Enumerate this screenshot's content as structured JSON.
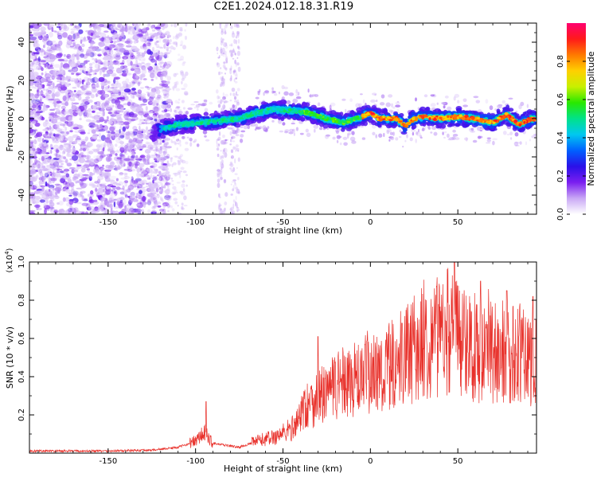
{
  "title": "C2E1.2024.012.18.31.R19",
  "chart_data": [
    {
      "type": "heatmap",
      "name": "spectrogram",
      "xlabel": "Height of straight line (km)",
      "ylabel": "Frequency (Hz)",
      "xlim": [
        -195,
        95
      ],
      "ylim": [
        -50,
        50
      ],
      "xticks": [
        -150,
        -100,
        -50,
        0,
        50
      ],
      "yticks": [
        -40,
        -20,
        0,
        20,
        40
      ],
      "colorbar": {
        "label": "Normalized spectral amplitude",
        "range": [
          0,
          1
        ],
        "ticks": [
          0.0,
          0.2,
          0.4,
          0.6,
          0.8
        ],
        "colors": [
          "#ffffff",
          "#c9a8f5",
          "#7a1ef0",
          "#2a10e8",
          "#0060ff",
          "#00c8f0",
          "#00e28a",
          "#28e800",
          "#c8f000",
          "#ffd000",
          "#ff7a00",
          "#ff1a1a",
          "#ff0070"
        ]
      },
      "ridge": [
        {
          "x": -125,
          "y": -7
        },
        {
          "x": -110,
          "y": -3
        },
        {
          "x": -95,
          "y": -2
        },
        {
          "x": -85,
          "y": -1
        },
        {
          "x": -75,
          "y": 0
        },
        {
          "x": -65,
          "y": 3
        },
        {
          "x": -55,
          "y": 5
        },
        {
          "x": -45,
          "y": 4
        },
        {
          "x": -35,
          "y": 3
        },
        {
          "x": -25,
          "y": 0
        },
        {
          "x": -15,
          "y": -2
        },
        {
          "x": -5,
          "y": 1
        },
        {
          "x": 0,
          "y": 3
        },
        {
          "x": 5,
          "y": 0
        },
        {
          "x": 15,
          "y": 0
        },
        {
          "x": 20,
          "y": -4
        },
        {
          "x": 25,
          "y": 0
        },
        {
          "x": 30,
          "y": 1
        },
        {
          "x": 40,
          "y": 0
        },
        {
          "x": 50,
          "y": 1
        },
        {
          "x": 60,
          "y": 0
        },
        {
          "x": 70,
          "y": -2
        },
        {
          "x": 78,
          "y": 2
        },
        {
          "x": 85,
          "y": -3
        },
        {
          "x": 92,
          "y": 0
        }
      ]
    },
    {
      "type": "line",
      "name": "snr",
      "xlabel": "Height of straight line (km)",
      "ylabel": "SNR (10 * v/v)",
      "multiplier": "(x10^4)",
      "xlim": [
        -195,
        95
      ],
      "ylim": [
        0,
        1.0
      ],
      "xticks": [
        -150,
        -100,
        -50,
        0,
        50
      ],
      "yticks": [
        0.2,
        0.4,
        0.6,
        0.8,
        1.0
      ],
      "color": "#e8302a",
      "envelope": [
        {
          "x": -195,
          "y": 0.01
        },
        {
          "x": -150,
          "y": 0.01
        },
        {
          "x": -125,
          "y": 0.015
        },
        {
          "x": -110,
          "y": 0.03
        },
        {
          "x": -100,
          "y": 0.06
        },
        {
          "x": -95,
          "y": 0.1
        },
        {
          "x": -90,
          "y": 0.05
        },
        {
          "x": -75,
          "y": 0.03
        },
        {
          "x": -65,
          "y": 0.06
        },
        {
          "x": -55,
          "y": 0.08
        },
        {
          "x": -45,
          "y": 0.12
        },
        {
          "x": -38,
          "y": 0.22
        },
        {
          "x": -30,
          "y": 0.28
        },
        {
          "x": -20,
          "y": 0.32
        },
        {
          "x": -10,
          "y": 0.36
        },
        {
          "x": 0,
          "y": 0.38
        },
        {
          "x": 10,
          "y": 0.42
        },
        {
          "x": 20,
          "y": 0.48
        },
        {
          "x": 30,
          "y": 0.55
        },
        {
          "x": 40,
          "y": 0.58
        },
        {
          "x": 48,
          "y": 0.6
        },
        {
          "x": 60,
          "y": 0.52
        },
        {
          "x": 70,
          "y": 0.5
        },
        {
          "x": 80,
          "y": 0.5
        },
        {
          "x": 95,
          "y": 0.48
        }
      ],
      "peaks": [
        {
          "x": -94,
          "y": 0.27
        },
        {
          "x": -30,
          "y": 0.61
        },
        {
          "x": 18,
          "y": 0.68
        },
        {
          "x": 48,
          "y": 1.0
        },
        {
          "x": 63,
          "y": 0.9
        },
        {
          "x": 78,
          "y": 0.85
        },
        {
          "x": 93,
          "y": 0.82
        }
      ]
    }
  ]
}
